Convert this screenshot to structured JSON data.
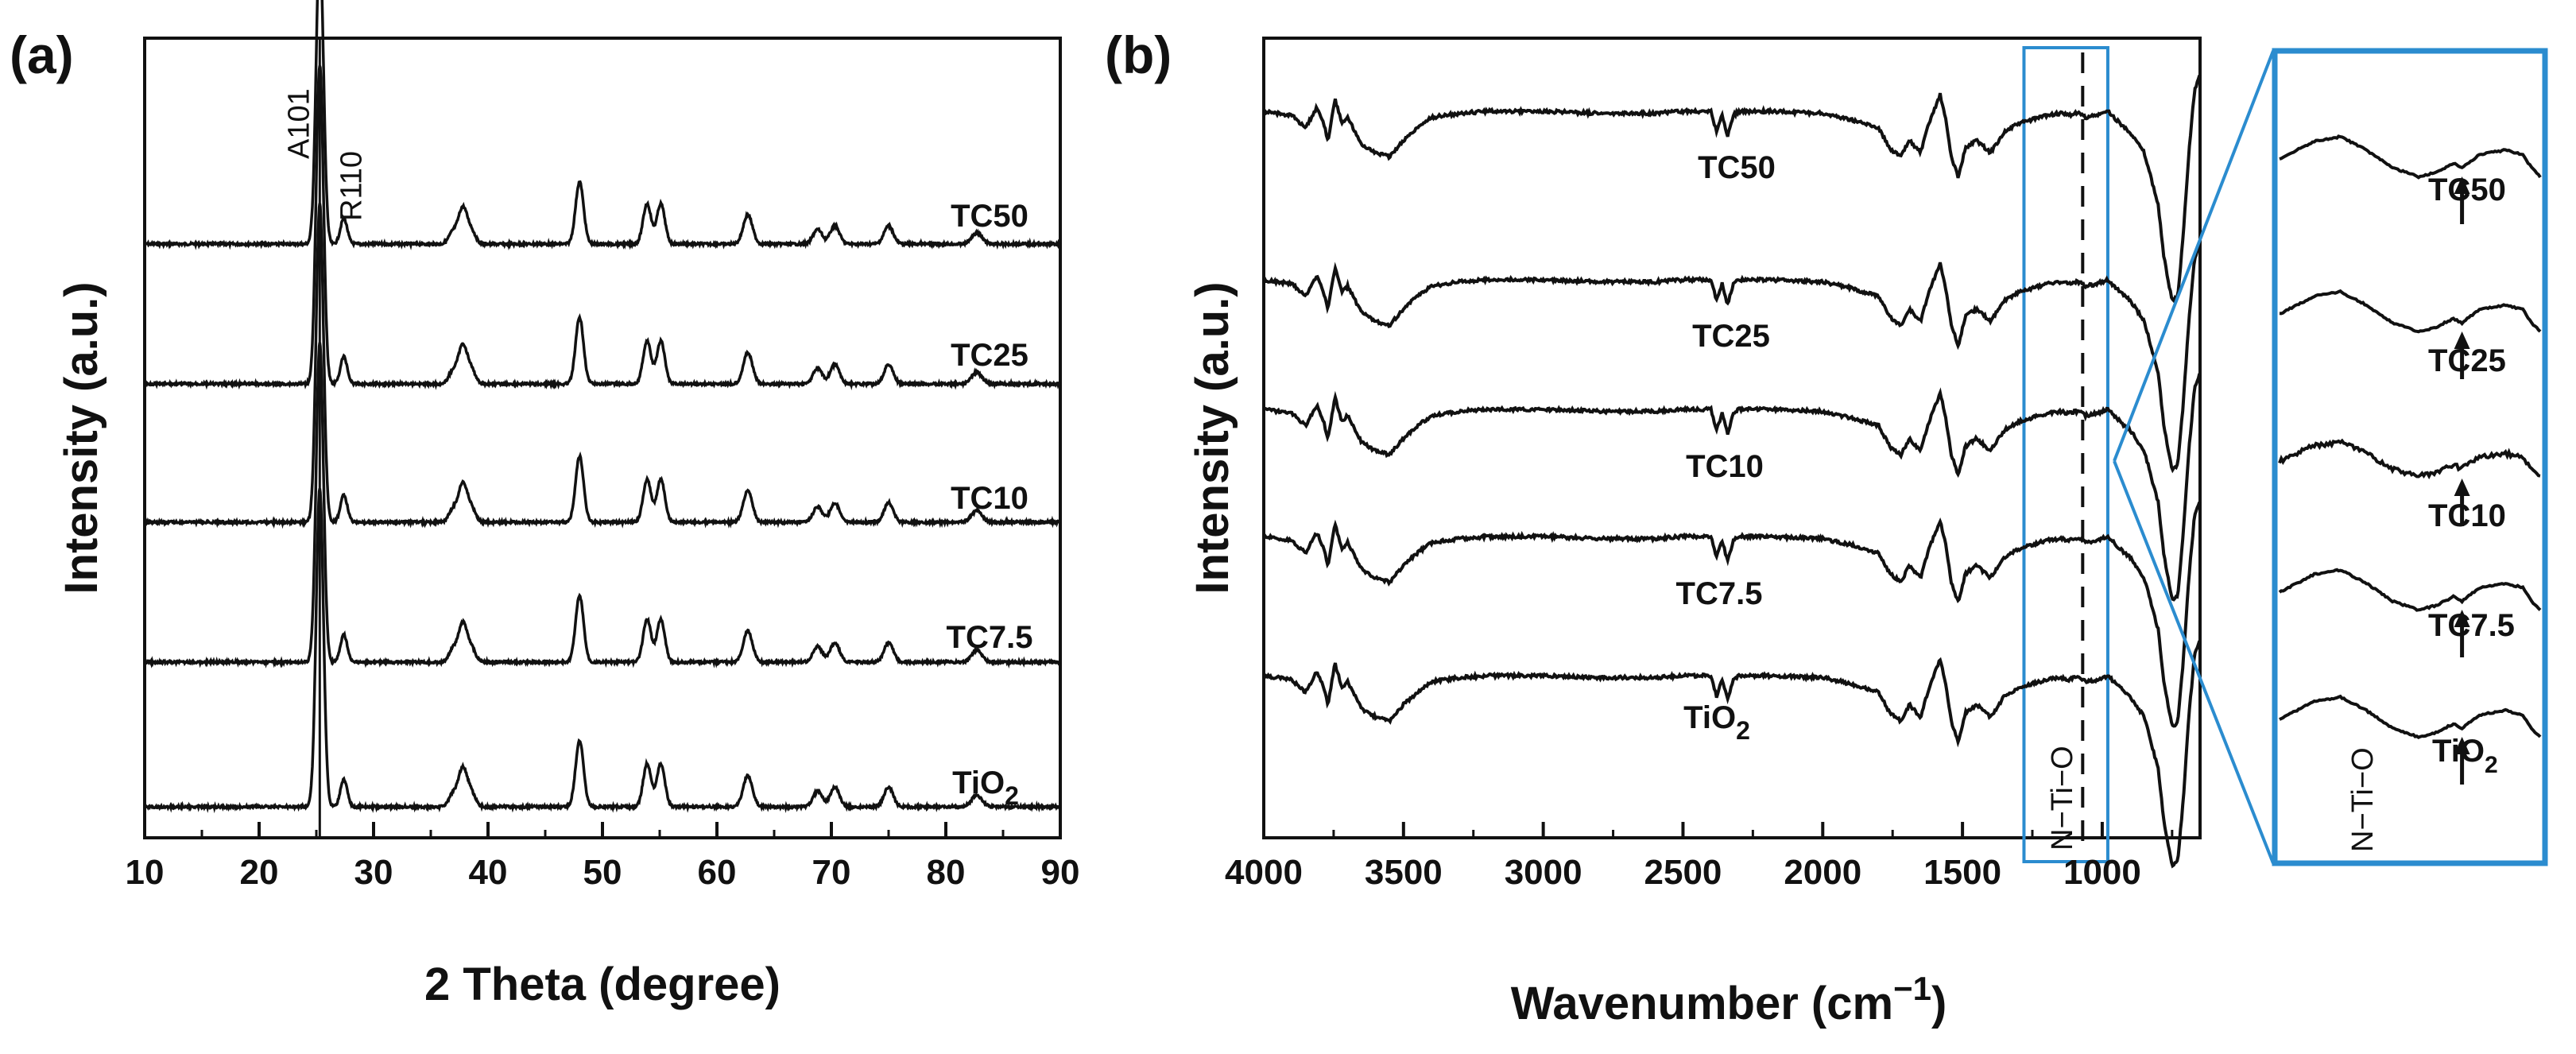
{
  "chart_data": [
    {
      "type": "line",
      "panel_label": "(a)",
      "title": "",
      "xlabel": "2 Theta (degree)",
      "ylabel": "Intensity (a.u.)",
      "xlim": [
        10,
        90
      ],
      "xticks": [
        "10",
        "20",
        "30",
        "40",
        "50",
        "60",
        "70",
        "80",
        "90"
      ],
      "yticks": [],
      "reference_line": {
        "x": 25.3
      },
      "peak_annotations": [
        {
          "label": "A101",
          "x": 25.3
        },
        {
          "label": "R110",
          "x": 27.4
        }
      ],
      "series": [
        {
          "name": "TC50",
          "sub": "",
          "offset": 4
        },
        {
          "name": "TC25",
          "sub": "",
          "offset": 3
        },
        {
          "name": "TC10",
          "sub": "",
          "offset": 2
        },
        {
          "name": "TC7.5",
          "sub": "",
          "offset": 1
        },
        {
          "name": "TiO",
          "sub": "2",
          "offset": 0
        }
      ],
      "peaks": [
        {
          "x": 25.3,
          "height": 82,
          "width": 0.32
        },
        {
          "x": 27.4,
          "height": 7,
          "width": 0.3
        },
        {
          "x": 36.9,
          "height": 3,
          "width": 0.35
        },
        {
          "x": 37.8,
          "height": 10,
          "width": 0.4
        },
        {
          "x": 38.6,
          "height": 3,
          "width": 0.35
        },
        {
          "x": 48.0,
          "height": 17,
          "width": 0.35
        },
        {
          "x": 53.9,
          "height": 11,
          "width": 0.35
        },
        {
          "x": 55.1,
          "height": 11,
          "width": 0.35
        },
        {
          "x": 62.7,
          "height": 8,
          "width": 0.4
        },
        {
          "x": 68.8,
          "height": 4,
          "width": 0.4
        },
        {
          "x": 70.3,
          "height": 5,
          "width": 0.4
        },
        {
          "x": 75.0,
          "height": 5,
          "width": 0.4
        },
        {
          "x": 82.7,
          "height": 3,
          "width": 0.45
        }
      ]
    },
    {
      "type": "line",
      "panel_label": "(b)",
      "title": "",
      "xlabel": "Wavenumber (cm",
      "xlabel_superscript": "−1",
      "xlabel_suffix": ")",
      "ylabel": "Intensity (a.u.)",
      "xlim": [
        4000,
        650
      ],
      "xticks": [
        "4000",
        "3500",
        "3000",
        "2500",
        "2000",
        "1500",
        "1000"
      ],
      "yticks": [],
      "highlight_region": [
        1280,
        980
      ],
      "reference_line": {
        "x": 1070
      },
      "region_label": "N−Ti−O",
      "series": [
        {
          "name": "TC50",
          "sub": "",
          "offset": 4
        },
        {
          "name": "TC25",
          "sub": "",
          "offset": 3
        },
        {
          "name": "TC10",
          "sub": "",
          "offset": 2
        },
        {
          "name": "TC7.5",
          "sub": "",
          "offset": 1
        },
        {
          "name": "TiO",
          "sub": "2",
          "offset": 0
        }
      ],
      "spectrum": [
        [
          4000,
          0
        ],
        [
          3900,
          -2
        ],
        [
          3850,
          -8
        ],
        [
          3810,
          2
        ],
        [
          3790,
          -4
        ],
        [
          3770,
          -14
        ],
        [
          3745,
          6
        ],
        [
          3720,
          -6
        ],
        [
          3700,
          -3
        ],
        [
          3650,
          -16
        ],
        [
          3600,
          -20
        ],
        [
          3550,
          -22
        ],
        [
          3500,
          -14
        ],
        [
          3450,
          -8
        ],
        [
          3400,
          -3
        ],
        [
          3300,
          -1
        ],
        [
          3200,
          0
        ],
        [
          3000,
          0
        ],
        [
          2800,
          -1
        ],
        [
          2600,
          -1
        ],
        [
          2500,
          0
        ],
        [
          2400,
          0
        ],
        [
          2380,
          -10
        ],
        [
          2360,
          -2
        ],
        [
          2340,
          -12
        ],
        [
          2320,
          -2
        ],
        [
          2300,
          0
        ],
        [
          2200,
          0
        ],
        [
          2000,
          -1
        ],
        [
          1900,
          -4
        ],
        [
          1800,
          -8
        ],
        [
          1760,
          -18
        ],
        [
          1720,
          -22
        ],
        [
          1690,
          -14
        ],
        [
          1650,
          -20
        ],
        [
          1620,
          -6
        ],
        [
          1580,
          8
        ],
        [
          1560,
          -4
        ],
        [
          1540,
          -22
        ],
        [
          1515,
          -32
        ],
        [
          1490,
          -18
        ],
        [
          1450,
          -14
        ],
        [
          1400,
          -20
        ],
        [
          1350,
          -10
        ],
        [
          1300,
          -6
        ],
        [
          1250,
          -4
        ],
        [
          1200,
          -2
        ],
        [
          1150,
          -1
        ],
        [
          1120,
          -2
        ],
        [
          1100,
          -1
        ],
        [
          1080,
          -1
        ],
        [
          1060,
          -3
        ],
        [
          1020,
          -2
        ],
        [
          980,
          0
        ],
        [
          950,
          -4
        ],
        [
          920,
          -8
        ],
        [
          900,
          -10
        ],
        [
          850,
          -20
        ],
        [
          800,
          -45
        ],
        [
          780,
          -70
        ],
        [
          750,
          -92
        ],
        [
          730,
          -90
        ],
        [
          710,
          -60
        ],
        [
          690,
          -20
        ],
        [
          670,
          10
        ],
        [
          650,
          18
        ]
      ]
    },
    {
      "type": "line",
      "panel_label": "",
      "title": "",
      "xlabel": "",
      "ylabel": "",
      "description_free": true,
      "xlim": [
        1280,
        980
      ],
      "series": [
        {
          "name": "TC50",
          "sub": "",
          "offset": 4
        },
        {
          "name": "TC25",
          "sub": "",
          "offset": 3
        },
        {
          "name": "TC10",
          "sub": "",
          "offset": 2
        },
        {
          "name": "TC7.5",
          "sub": "",
          "offset": 1
        },
        {
          "name": "TiO",
          "sub": "2",
          "offset": 0
        }
      ],
      "arrow_x": 1070,
      "region_label": "N−Ti−O",
      "spectrum": [
        [
          1280,
          0
        ],
        [
          1240,
          8
        ],
        [
          1210,
          10
        ],
        [
          1180,
          4
        ],
        [
          1150,
          -4
        ],
        [
          1120,
          -8
        ],
        [
          1100,
          -6
        ],
        [
          1080,
          -2
        ],
        [
          1070,
          -4
        ],
        [
          1050,
          2
        ],
        [
          1020,
          4
        ],
        [
          1000,
          2
        ],
        [
          990,
          -4
        ],
        [
          980,
          -8
        ]
      ]
    }
  ]
}
